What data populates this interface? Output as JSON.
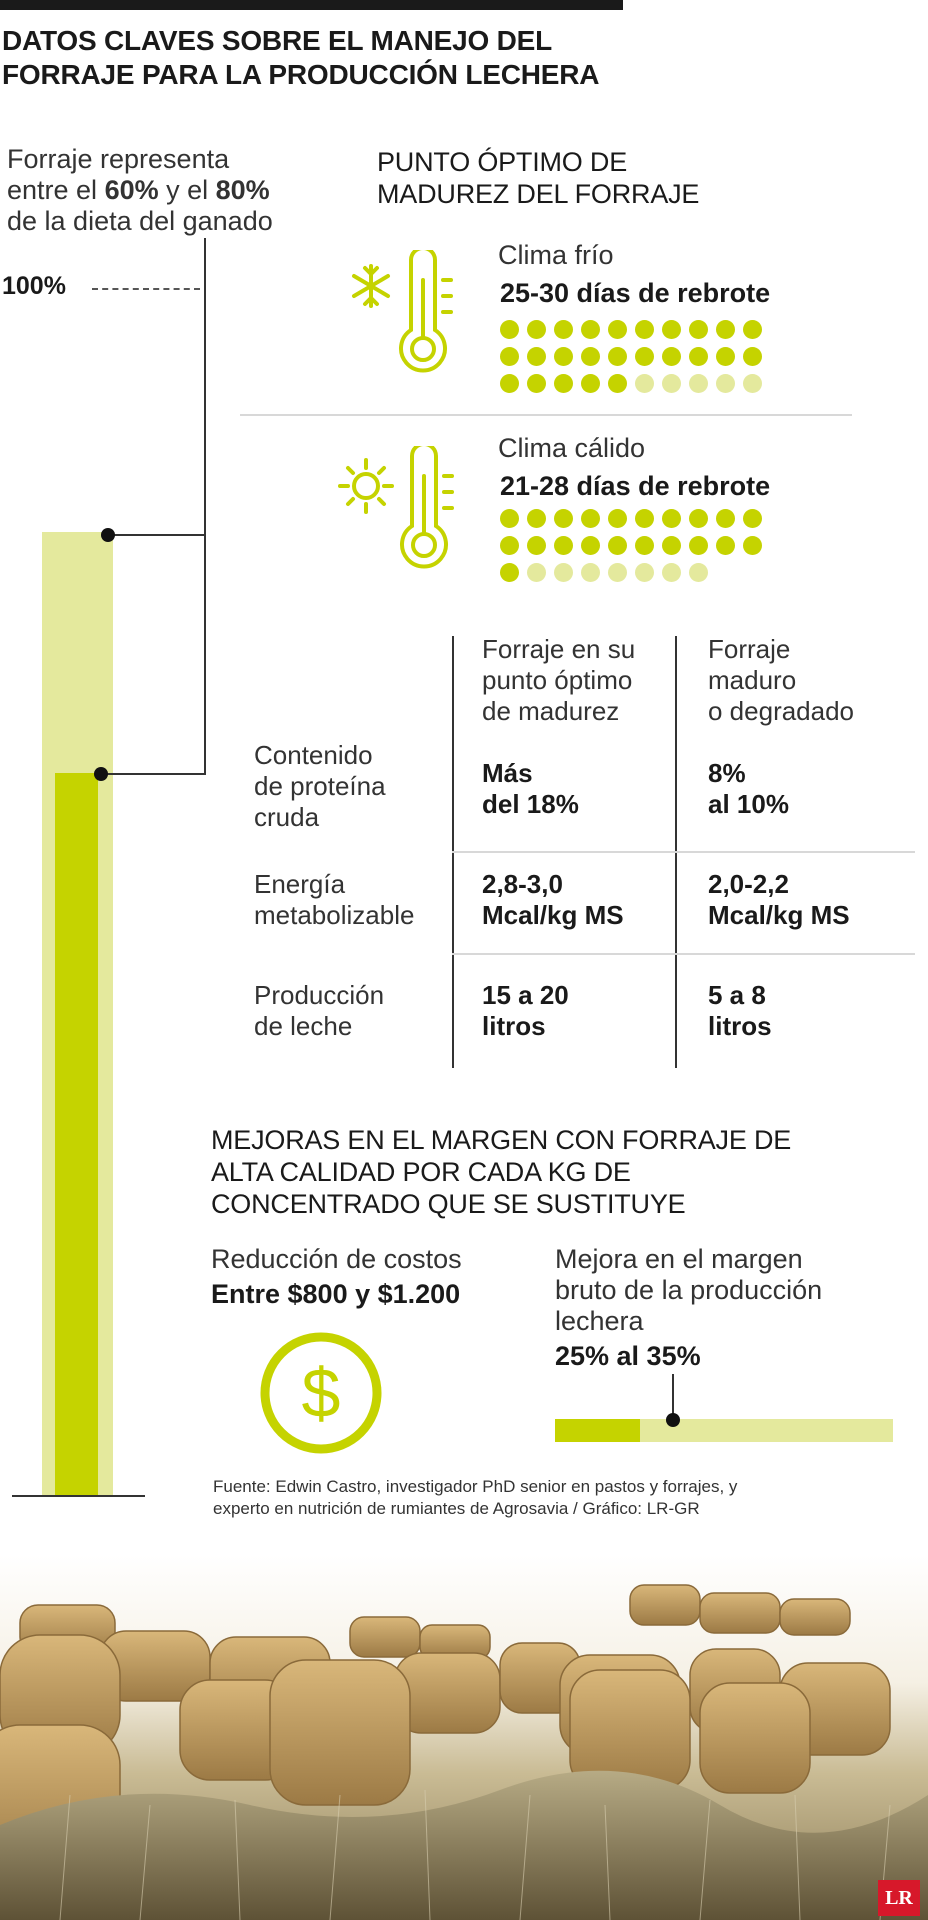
{
  "title": {
    "line1": "DATOS CLAVES SOBRE EL MANEJO DEL",
    "line2": "FORRAJE PARA LA PRODUCCIÓN LECHERA"
  },
  "diet": {
    "line1": "Forraje representa",
    "line2_a": "entre el ",
    "line2_b": "60%",
    "line2_c": " y el ",
    "line2_d": "80%",
    "line3": "de la dieta del ganado",
    "hundred_label": "100%",
    "share_min_pct": 60,
    "share_max_pct": 80
  },
  "maturity": {
    "title1": "PUNTO ÓPTIMO DE",
    "title2": "MADUREZ DEL FORRAJE",
    "cold": {
      "label": "Clima frío",
      "value": "25-30 días de rebrote",
      "range_min": 25,
      "range_max": 30,
      "icon": "snowflake-thermometer-icon"
    },
    "warm": {
      "label": "Clima cálido",
      "value": "21-28 días de rebrote",
      "range_min": 21,
      "range_max": 28,
      "icon": "sun-thermometer-icon"
    }
  },
  "table": {
    "col1": [
      "Forraje en su",
      "punto óptimo",
      "de madurez"
    ],
    "col2": [
      "Forraje",
      "maduro",
      "o degradado"
    ],
    "rows": [
      {
        "label": [
          "Contenido",
          "de proteína",
          "cruda"
        ],
        "v1": [
          "Más",
          "del 18%"
        ],
        "v2": [
          "8%",
          "al 10%"
        ]
      },
      {
        "label": [
          "Energía",
          "metabolizable"
        ],
        "v1": [
          "2,8-3,0",
          "Mcal/kg MS"
        ],
        "v2": [
          "2,0-2,2",
          "Mcal/kg MS"
        ]
      },
      {
        "label": [
          "Producción",
          "de leche"
        ],
        "v1": [
          "15 a 20",
          "litros"
        ],
        "v2": [
          "5 a 8",
          "litros"
        ]
      }
    ]
  },
  "margin": {
    "title": [
      "MEJORAS EN EL MARGEN CON FORRAJE DE",
      "ALTA CALIDAD POR CADA KG DE",
      "CONCENTRADO QUE SE SUSTITUYE"
    ],
    "cost_label": "Reducción de costos",
    "cost_value": "Entre $800 y $1.200",
    "cost_icon": "dollar-coin-icon",
    "gross_label": [
      "Mejora en el margen",
      "bruto de la producción",
      "lechera"
    ],
    "gross_value": "25% al 35%",
    "gross_min_pct": 25,
    "gross_max_pct": 35
  },
  "source": {
    "line1": "Fuente: Edwin Castro, investigador PhD senior en pastos y forrajes, y",
    "line2": "experto en nutrición de rumiantes de Agrosavia / Gráfico: LR-GR"
  },
  "logo": "LR",
  "colors": {
    "accent": "#c5d300",
    "accent_light": "#e4e99d",
    "text": "#1a1a1a"
  }
}
